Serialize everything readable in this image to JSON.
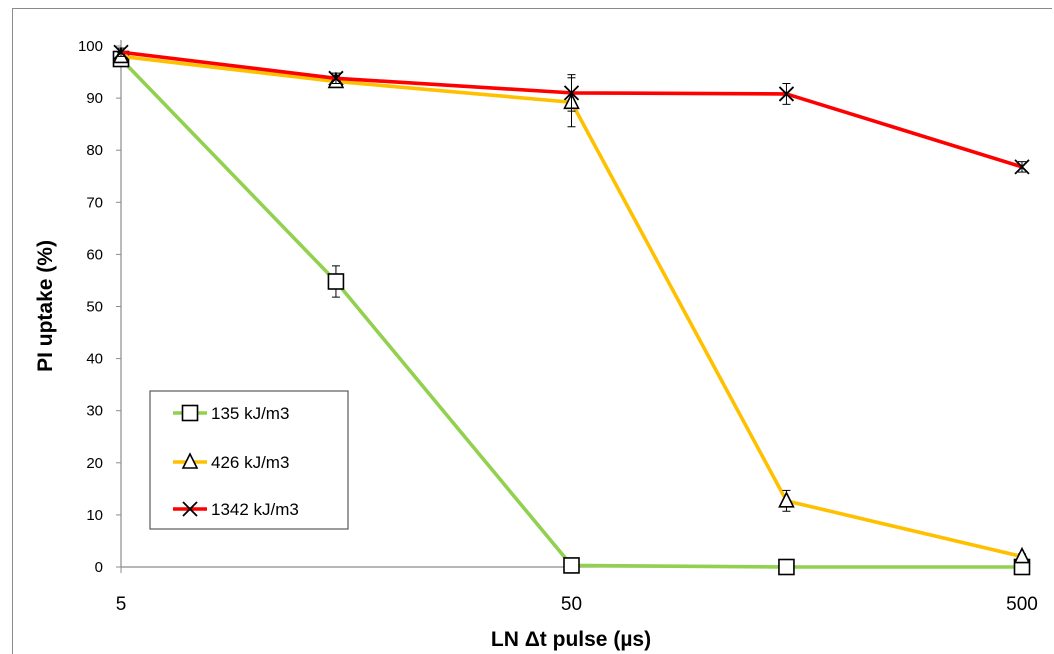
{
  "chart_data": {
    "type": "line",
    "title": "",
    "xlabel": "LN Δt pulse (µs)",
    "ylabel": "PI uptake (%)",
    "x_scale": "log",
    "xlim": [
      5,
      500
    ],
    "ylim": [
      0,
      100
    ],
    "x_ticks": [
      "5",
      "50",
      "500"
    ],
    "y_ticks": [
      "0",
      "10",
      "20",
      "30",
      "40",
      "50",
      "60",
      "70",
      "80",
      "90",
      "100"
    ],
    "x": [
      5,
      15,
      50,
      150,
      500
    ],
    "grid": false,
    "legend_position": "lower-left",
    "series": [
      {
        "name": "135 kJ/m3",
        "color": "#92d050",
        "marker": "square",
        "values": [
          97.5,
          54.8,
          0.3,
          0.0,
          0.0
        ],
        "errors": [
          1.0,
          3.0,
          0.5,
          0.3,
          0.3
        ]
      },
      {
        "name": "426 kJ/m3",
        "color": "#ffc000",
        "marker": "triangle",
        "values": [
          98.0,
          93.2,
          89.2,
          12.7,
          2.0
        ],
        "errors": [
          0.8,
          1.0,
          4.7,
          2.0,
          0.5
        ]
      },
      {
        "name": "1342 kJ/m3",
        "color": "#ff0000",
        "marker": "x",
        "values": [
          98.8,
          93.8,
          91.0,
          90.8,
          76.8
        ],
        "errors": [
          0.8,
          1.0,
          3.5,
          2.0,
          1.0
        ]
      }
    ]
  }
}
